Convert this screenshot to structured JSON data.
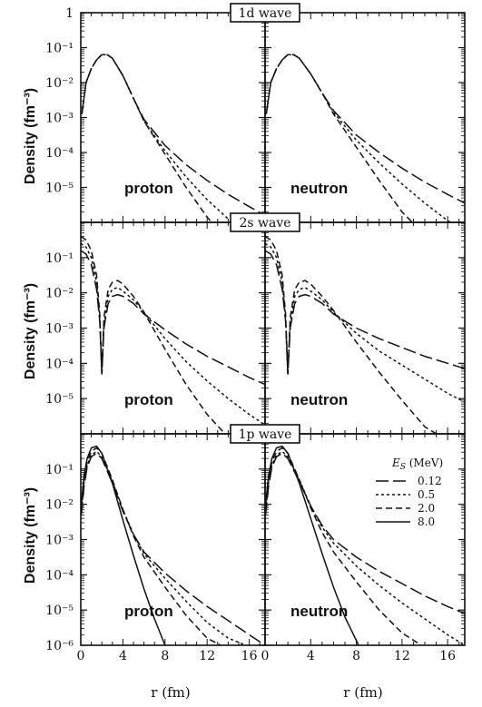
{
  "chart_data": {
    "type": "line",
    "x_label": "r (fm)",
    "x_ticks": [
      0,
      4,
      8,
      12,
      16
    ],
    "xlim": [
      0,
      17.5
    ],
    "y_label": "Density  (fm⁻³)",
    "y_scale": "log",
    "legend": {
      "title": "E_S (MeV)",
      "placement": "top-right of lower-right panel",
      "entries": [
        {
          "label": "0.12",
          "dash": "long-dash"
        },
        {
          "label": "0.5",
          "dash": "dotted"
        },
        {
          "label": "2.0",
          "dash": "dashed"
        },
        {
          "label": "8.0",
          "dash": "solid"
        }
      ]
    },
    "rows": [
      {
        "title": "1d wave",
        "ylim_exp": [
          -6,
          0
        ],
        "y_tick_exps": [
          0,
          -1,
          -2,
          -3,
          -4,
          -5
        ],
        "panels": [
          {
            "label": "proton",
            "series": [
              {
                "name": "0.12",
                "x": [
                  0.1,
                  0.5,
                  1,
                  1.5,
                  2,
                  2.5,
                  3,
                  4,
                  5,
                  6,
                  8,
                  10,
                  12,
                  14,
                  16,
                  17.5
                ],
                "y_exp": [
                  -2.9,
                  -2.0,
                  -1.6,
                  -1.35,
                  -1.2,
                  -1.2,
                  -1.3,
                  -1.8,
                  -2.45,
                  -3.05,
                  -3.8,
                  -4.35,
                  -4.8,
                  -5.2,
                  -5.55,
                  -5.8
                ]
              },
              {
                "name": "0.5",
                "x": [
                  0.1,
                  0.5,
                  1,
                  1.5,
                  2,
                  2.5,
                  3,
                  4,
                  5,
                  6,
                  8,
                  10,
                  12,
                  14,
                  15.5
                ],
                "y_exp": [
                  -2.9,
                  -2.0,
                  -1.6,
                  -1.35,
                  -1.2,
                  -1.2,
                  -1.3,
                  -1.8,
                  -2.45,
                  -3.1,
                  -3.95,
                  -4.7,
                  -5.35,
                  -5.9,
                  -6.2
                ]
              },
              {
                "name": "2.0",
                "x": [
                  0.1,
                  0.5,
                  1,
                  1.5,
                  2,
                  2.5,
                  3,
                  4,
                  5,
                  6,
                  8,
                  10,
                  12,
                  13.3
                ],
                "y_exp": [
                  -2.9,
                  -2.0,
                  -1.6,
                  -1.35,
                  -1.2,
                  -1.2,
                  -1.3,
                  -1.8,
                  -2.45,
                  -3.1,
                  -4.05,
                  -5.0,
                  -5.85,
                  -6.3
                ]
              }
            ]
          },
          {
            "label": "neutron",
            "series": [
              {
                "name": "0.12",
                "x": [
                  0.1,
                  0.5,
                  1,
                  1.5,
                  2,
                  2.5,
                  3,
                  4,
                  5,
                  6,
                  8,
                  10,
                  12,
                  14,
                  16,
                  17.5
                ],
                "y_exp": [
                  -2.9,
                  -2.0,
                  -1.6,
                  -1.35,
                  -1.2,
                  -1.2,
                  -1.3,
                  -1.75,
                  -2.3,
                  -2.8,
                  -3.5,
                  -4.0,
                  -4.45,
                  -4.85,
                  -5.2,
                  -5.45
                ]
              },
              {
                "name": "0.5",
                "x": [
                  0.1,
                  0.5,
                  1,
                  1.5,
                  2,
                  2.5,
                  3,
                  4,
                  5,
                  6,
                  8,
                  10,
                  12,
                  14,
                  16,
                  17.5
                ],
                "y_exp": [
                  -2.9,
                  -2.0,
                  -1.6,
                  -1.35,
                  -1.2,
                  -1.2,
                  -1.3,
                  -1.75,
                  -2.3,
                  -2.85,
                  -3.65,
                  -4.3,
                  -4.9,
                  -5.45,
                  -5.95,
                  -6.25
                ]
              },
              {
                "name": "2.0",
                "x": [
                  0.1,
                  0.5,
                  1,
                  1.5,
                  2,
                  2.5,
                  3,
                  4,
                  5,
                  6,
                  8,
                  10,
                  12,
                  13.8
                ],
                "y_exp": [
                  -2.9,
                  -2.0,
                  -1.6,
                  -1.35,
                  -1.2,
                  -1.2,
                  -1.3,
                  -1.75,
                  -2.3,
                  -2.9,
                  -3.85,
                  -4.8,
                  -5.7,
                  -6.3
                ]
              }
            ]
          }
        ]
      },
      {
        "title": "2s wave",
        "ylim_exp": [
          -6,
          0
        ],
        "y_tick_exps": [
          -1,
          -2,
          -3,
          -4,
          -5
        ],
        "panels": [
          {
            "label": "proton",
            "series": [
              {
                "name": "0.12",
                "x": [
                  0,
                  0.5,
                  1,
                  1.5,
                  1.8,
                  2.0,
                  2.2,
                  2.6,
                  3,
                  3.5,
                  4,
                  5,
                  6,
                  8,
                  10,
                  12,
                  14,
                  16,
                  17.5
                ],
                "y_exp": [
                  -0.8,
                  -0.9,
                  -1.2,
                  -1.9,
                  -2.8,
                  -4.3,
                  -3.0,
                  -2.3,
                  -2.1,
                  -2.05,
                  -2.1,
                  -2.3,
                  -2.6,
                  -3.05,
                  -3.45,
                  -3.8,
                  -4.1,
                  -4.4,
                  -4.6
                ]
              },
              {
                "name": "0.5",
                "x": [
                  0,
                  0.5,
                  1,
                  1.5,
                  1.8,
                  2.0,
                  2.2,
                  2.6,
                  3,
                  3.5,
                  4,
                  5,
                  6,
                  8,
                  10,
                  12,
                  14,
                  16,
                  17.5
                ],
                "y_exp": [
                  -0.6,
                  -0.7,
                  -1.0,
                  -1.7,
                  -2.7,
                  -4.3,
                  -2.9,
                  -2.1,
                  -1.9,
                  -1.85,
                  -1.95,
                  -2.2,
                  -2.55,
                  -3.3,
                  -3.95,
                  -4.5,
                  -5.0,
                  -5.45,
                  -5.75
                ]
              },
              {
                "name": "2.0",
                "x": [
                  0,
                  0.5,
                  1,
                  1.5,
                  1.8,
                  2.0,
                  2.2,
                  2.6,
                  3,
                  3.5,
                  4,
                  5,
                  6,
                  8,
                  10,
                  12,
                  14,
                  15.3
                ],
                "y_exp": [
                  -0.4,
                  -0.5,
                  -0.8,
                  -1.5,
                  -2.6,
                  -4.3,
                  -2.7,
                  -1.9,
                  -1.7,
                  -1.65,
                  -1.75,
                  -2.1,
                  -2.55,
                  -3.6,
                  -4.6,
                  -5.45,
                  -6.1,
                  -6.3
                ]
              }
            ]
          },
          {
            "label": "neutron",
            "series": [
              {
                "name": "0.12",
                "x": [
                  0,
                  0.5,
                  1,
                  1.5,
                  1.8,
                  2.0,
                  2.2,
                  2.6,
                  3,
                  3.5,
                  4,
                  5,
                  6,
                  8,
                  10,
                  12,
                  14,
                  16,
                  17.5
                ],
                "y_exp": [
                  -0.8,
                  -0.9,
                  -1.2,
                  -1.9,
                  -2.8,
                  -4.3,
                  -3.0,
                  -2.3,
                  -2.1,
                  -2.05,
                  -2.1,
                  -2.3,
                  -2.6,
                  -3.0,
                  -3.3,
                  -3.55,
                  -3.8,
                  -4.0,
                  -4.15
                ]
              },
              {
                "name": "0.5",
                "x": [
                  0,
                  0.5,
                  1,
                  1.5,
                  1.8,
                  2.0,
                  2.2,
                  2.6,
                  3,
                  3.5,
                  4,
                  5,
                  6,
                  8,
                  10,
                  12,
                  14,
                  16,
                  17.5
                ],
                "y_exp": [
                  -0.6,
                  -0.7,
                  -1.0,
                  -1.7,
                  -2.7,
                  -4.3,
                  -2.9,
                  -2.1,
                  -1.9,
                  -1.85,
                  -1.95,
                  -2.2,
                  -2.55,
                  -3.15,
                  -3.65,
                  -4.05,
                  -4.45,
                  -4.85,
                  -5.1
                ]
              },
              {
                "name": "2.0",
                "x": [
                  0,
                  0.5,
                  1,
                  1.5,
                  1.8,
                  2.0,
                  2.2,
                  2.6,
                  3,
                  3.5,
                  4,
                  5,
                  6,
                  8,
                  10,
                  12,
                  14,
                  16,
                  16.8
                ],
                "y_exp": [
                  -0.4,
                  -0.5,
                  -0.8,
                  -1.5,
                  -2.6,
                  -4.3,
                  -2.7,
                  -1.9,
                  -1.7,
                  -1.65,
                  -1.75,
                  -2.1,
                  -2.5,
                  -3.4,
                  -4.25,
                  -5.05,
                  -5.8,
                  -6.2,
                  -6.3
                ]
              }
            ]
          }
        ]
      },
      {
        "title": "1p wave",
        "ylim_exp": [
          -6,
          0
        ],
        "y_tick_exps": [
          -1,
          -2,
          -3,
          -4,
          -5,
          -6
        ],
        "panels": [
          {
            "label": "proton",
            "series": [
              {
                "name": "0.12",
                "x": [
                  0.05,
                  0.3,
                  0.6,
                  1,
                  1.5,
                  2,
                  3,
                  4,
                  5,
                  6,
                  8,
                  10,
                  12,
                  14,
                  16,
                  17.5
                ],
                "y_exp": [
                  -2.3,
                  -1.5,
                  -0.95,
                  -0.65,
                  -0.55,
                  -0.7,
                  -1.4,
                  -2.2,
                  -2.85,
                  -3.35,
                  -3.95,
                  -4.45,
                  -4.9,
                  -5.3,
                  -5.7,
                  -6.0
                ]
              },
              {
                "name": "0.5",
                "x": [
                  0.05,
                  0.3,
                  0.6,
                  1,
                  1.5,
                  2,
                  3,
                  4,
                  5,
                  6,
                  8,
                  10,
                  12,
                  14,
                  15.7
                ],
                "y_exp": [
                  -2.2,
                  -1.4,
                  -0.9,
                  -0.6,
                  -0.5,
                  -0.65,
                  -1.35,
                  -2.15,
                  -2.85,
                  -3.4,
                  -4.1,
                  -4.75,
                  -5.35,
                  -5.8,
                  -6.0
                ]
              },
              {
                "name": "2.0",
                "x": [
                  0.05,
                  0.3,
                  0.6,
                  1,
                  1.5,
                  2,
                  3,
                  4,
                  5,
                  6,
                  8,
                  10,
                  12,
                  13.3
                ],
                "y_exp": [
                  -2.1,
                  -1.3,
                  -0.8,
                  -0.5,
                  -0.4,
                  -0.55,
                  -1.3,
                  -2.15,
                  -2.9,
                  -3.5,
                  -4.35,
                  -5.15,
                  -5.8,
                  -6.0
                ]
              },
              {
                "name": "8.0",
                "x": [
                  0.05,
                  0.3,
                  0.6,
                  1,
                  1.5,
                  2,
                  3,
                  4,
                  5,
                  6,
                  7,
                  8
                ],
                "y_exp": [
                  -2.0,
                  -1.2,
                  -0.7,
                  -0.4,
                  -0.35,
                  -0.55,
                  -1.4,
                  -2.45,
                  -3.45,
                  -4.4,
                  -5.25,
                  -6.0
                ]
              }
            ]
          },
          {
            "label": "neutron",
            "series": [
              {
                "name": "0.12",
                "x": [
                  0.05,
                  0.3,
                  0.6,
                  1,
                  1.5,
                  2,
                  3,
                  4,
                  5,
                  6,
                  8,
                  10,
                  12,
                  14,
                  16,
                  17.5
                ],
                "y_exp": [
                  -2.3,
                  -1.5,
                  -0.95,
                  -0.65,
                  -0.55,
                  -0.7,
                  -1.35,
                  -2.05,
                  -2.6,
                  -3.0,
                  -3.5,
                  -3.9,
                  -4.25,
                  -4.6,
                  -4.9,
                  -5.1
                ]
              },
              {
                "name": "0.5",
                "x": [
                  0.05,
                  0.3,
                  0.6,
                  1,
                  1.5,
                  2,
                  3,
                  4,
                  5,
                  6,
                  8,
                  10,
                  12,
                  14,
                  16,
                  17.5
                ],
                "y_exp": [
                  -2.2,
                  -1.4,
                  -0.9,
                  -0.6,
                  -0.5,
                  -0.65,
                  -1.3,
                  -2.05,
                  -2.65,
                  -3.1,
                  -3.75,
                  -4.3,
                  -4.8,
                  -5.25,
                  -5.7,
                  -6.0
                ]
              },
              {
                "name": "2.0",
                "x": [
                  0.05,
                  0.3,
                  0.6,
                  1,
                  1.5,
                  2,
                  3,
                  4,
                  5,
                  6,
                  8,
                  10,
                  12,
                  13.7
                ],
                "y_exp": [
                  -2.1,
                  -1.3,
                  -0.8,
                  -0.5,
                  -0.4,
                  -0.55,
                  -1.3,
                  -2.1,
                  -2.8,
                  -3.35,
                  -4.2,
                  -5.0,
                  -5.65,
                  -6.0
                ]
              },
              {
                "name": "8.0",
                "x": [
                  0.05,
                  0.3,
                  0.6,
                  1,
                  1.5,
                  2,
                  3,
                  4,
                  5,
                  6,
                  7,
                  8.2
                ],
                "y_exp": [
                  -2.0,
                  -1.2,
                  -0.7,
                  -0.4,
                  -0.35,
                  -0.55,
                  -1.4,
                  -2.4,
                  -3.4,
                  -4.35,
                  -5.2,
                  -6.0
                ]
              }
            ]
          }
        ]
      }
    ]
  }
}
